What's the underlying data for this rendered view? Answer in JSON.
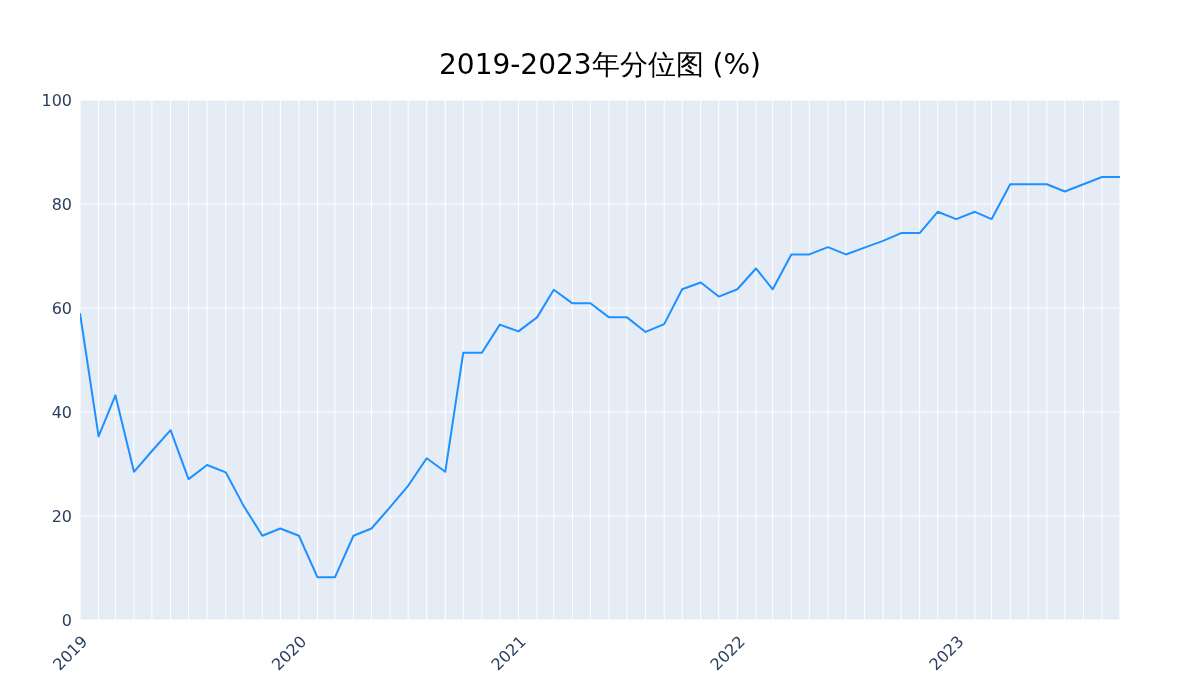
{
  "chart_data": {
    "type": "line",
    "title": "2019-2023年分位图 (%)",
    "x": [
      "2019-01",
      "2019-02",
      "2019-03",
      "2019-04",
      "2019-05",
      "2019-06",
      "2019-07",
      "2019-08",
      "2019-09",
      "2019-10",
      "2019-11",
      "2019-12",
      "2020-01",
      "2020-02",
      "2020-03",
      "2020-04",
      "2020-05",
      "2020-06",
      "2020-07",
      "2020-08",
      "2020-09",
      "2020-10",
      "2020-11",
      "2020-12",
      "2021-01",
      "2021-02",
      "2021-03",
      "2021-04",
      "2021-05",
      "2021-06",
      "2021-07",
      "2021-08",
      "2021-09",
      "2021-10",
      "2021-11",
      "2021-12",
      "2022-01",
      "2022-02",
      "2022-03",
      "2022-04",
      "2022-05",
      "2022-06",
      "2022-07",
      "2022-08",
      "2022-09",
      "2022-10",
      "2022-11",
      "2022-12",
      "2023-01",
      "2023-02",
      "2023-03",
      "2023-04",
      "2023-05",
      "2023-06",
      "2023-07",
      "2023-08",
      "2023-09",
      "2023-10"
    ],
    "series": [
      {
        "color": "#1e90ff",
        "values": [
          59.0,
          35.3,
          43.2,
          28.5,
          32.5,
          36.5,
          27.1,
          29.8,
          28.4,
          21.9,
          16.2,
          17.6,
          16.2,
          8.2,
          8.2,
          16.2,
          17.6,
          21.7,
          25.8,
          31.1,
          28.5,
          51.4,
          51.4,
          56.8,
          55.5,
          58.2,
          63.5,
          60.9,
          60.9,
          58.2,
          58.2,
          55.4,
          56.9,
          63.6,
          64.9,
          62.2,
          63.6,
          67.6,
          63.6,
          70.3,
          70.3,
          71.7,
          70.3,
          71.6,
          72.9,
          74.4,
          74.4,
          78.5,
          77.1,
          78.5,
          77.1,
          83.8,
          83.8,
          83.8,
          82.4,
          83.8,
          85.2,
          85.2
        ]
      }
    ],
    "xlim": [
      "2019-01",
      "2023-10"
    ],
    "xticks": [
      {
        "value": "2019-01",
        "label": "2019"
      },
      {
        "value": "2019-02",
        "label": null
      },
      {
        "value": "2019-03",
        "label": null
      },
      {
        "value": "2019-04",
        "label": null
      },
      {
        "value": "2019-05",
        "label": null
      },
      {
        "value": "2019-06",
        "label": null
      },
      {
        "value": "2019-07",
        "label": null
      },
      {
        "value": "2019-08",
        "label": null
      },
      {
        "value": "2019-09",
        "label": null
      },
      {
        "value": "2019-10",
        "label": null
      },
      {
        "value": "2019-11",
        "label": null
      },
      {
        "value": "2019-12",
        "label": null
      },
      {
        "value": "2020-01",
        "label": "2020"
      },
      {
        "value": "2020-02",
        "label": null
      },
      {
        "value": "2020-03",
        "label": null
      },
      {
        "value": "2020-04",
        "label": null
      },
      {
        "value": "2020-05",
        "label": null
      },
      {
        "value": "2020-06",
        "label": null
      },
      {
        "value": "2020-07",
        "label": null
      },
      {
        "value": "2020-08",
        "label": null
      },
      {
        "value": "2020-09",
        "label": null
      },
      {
        "value": "2020-10",
        "label": null
      },
      {
        "value": "2020-11",
        "label": null
      },
      {
        "value": "2020-12",
        "label": null
      },
      {
        "value": "2021-01",
        "label": "2021"
      },
      {
        "value": "2021-02",
        "label": null
      },
      {
        "value": "2021-03",
        "label": null
      },
      {
        "value": "2021-04",
        "label": null
      },
      {
        "value": "2021-05",
        "label": null
      },
      {
        "value": "2021-06",
        "label": null
      },
      {
        "value": "2021-07",
        "label": null
      },
      {
        "value": "2021-08",
        "label": null
      },
      {
        "value": "2021-09",
        "label": null
      },
      {
        "value": "2021-10",
        "label": null
      },
      {
        "value": "2021-11",
        "label": null
      },
      {
        "value": "2021-12",
        "label": null
      },
      {
        "value": "2022-01",
        "label": "2022"
      },
      {
        "value": "2022-02",
        "label": null
      },
      {
        "value": "2022-03",
        "label": null
      },
      {
        "value": "2022-04",
        "label": null
      },
      {
        "value": "2022-05",
        "label": null
      },
      {
        "value": "2022-06",
        "label": null
      },
      {
        "value": "2022-07",
        "label": null
      },
      {
        "value": "2022-08",
        "label": null
      },
      {
        "value": "2022-09",
        "label": null
      },
      {
        "value": "2022-10",
        "label": null
      },
      {
        "value": "2022-11",
        "label": null
      },
      {
        "value": "2022-12",
        "label": null
      },
      {
        "value": "2023-01",
        "label": "2023"
      },
      {
        "value": "2023-02",
        "label": null
      },
      {
        "value": "2023-03",
        "label": null
      },
      {
        "value": "2023-04",
        "label": null
      },
      {
        "value": "2023-05",
        "label": null
      },
      {
        "value": "2023-06",
        "label": null
      },
      {
        "value": "2023-07",
        "label": null
      },
      {
        "value": "2023-08",
        "label": null
      },
      {
        "value": "2023-09",
        "label": null
      },
      {
        "value": "2023-10",
        "label": null
      }
    ],
    "ylim": [
      0,
      100
    ],
    "yticks": [
      0,
      20,
      40,
      60,
      80,
      100
    ],
    "grid": true,
    "marker": "none",
    "line_style": "solid"
  }
}
